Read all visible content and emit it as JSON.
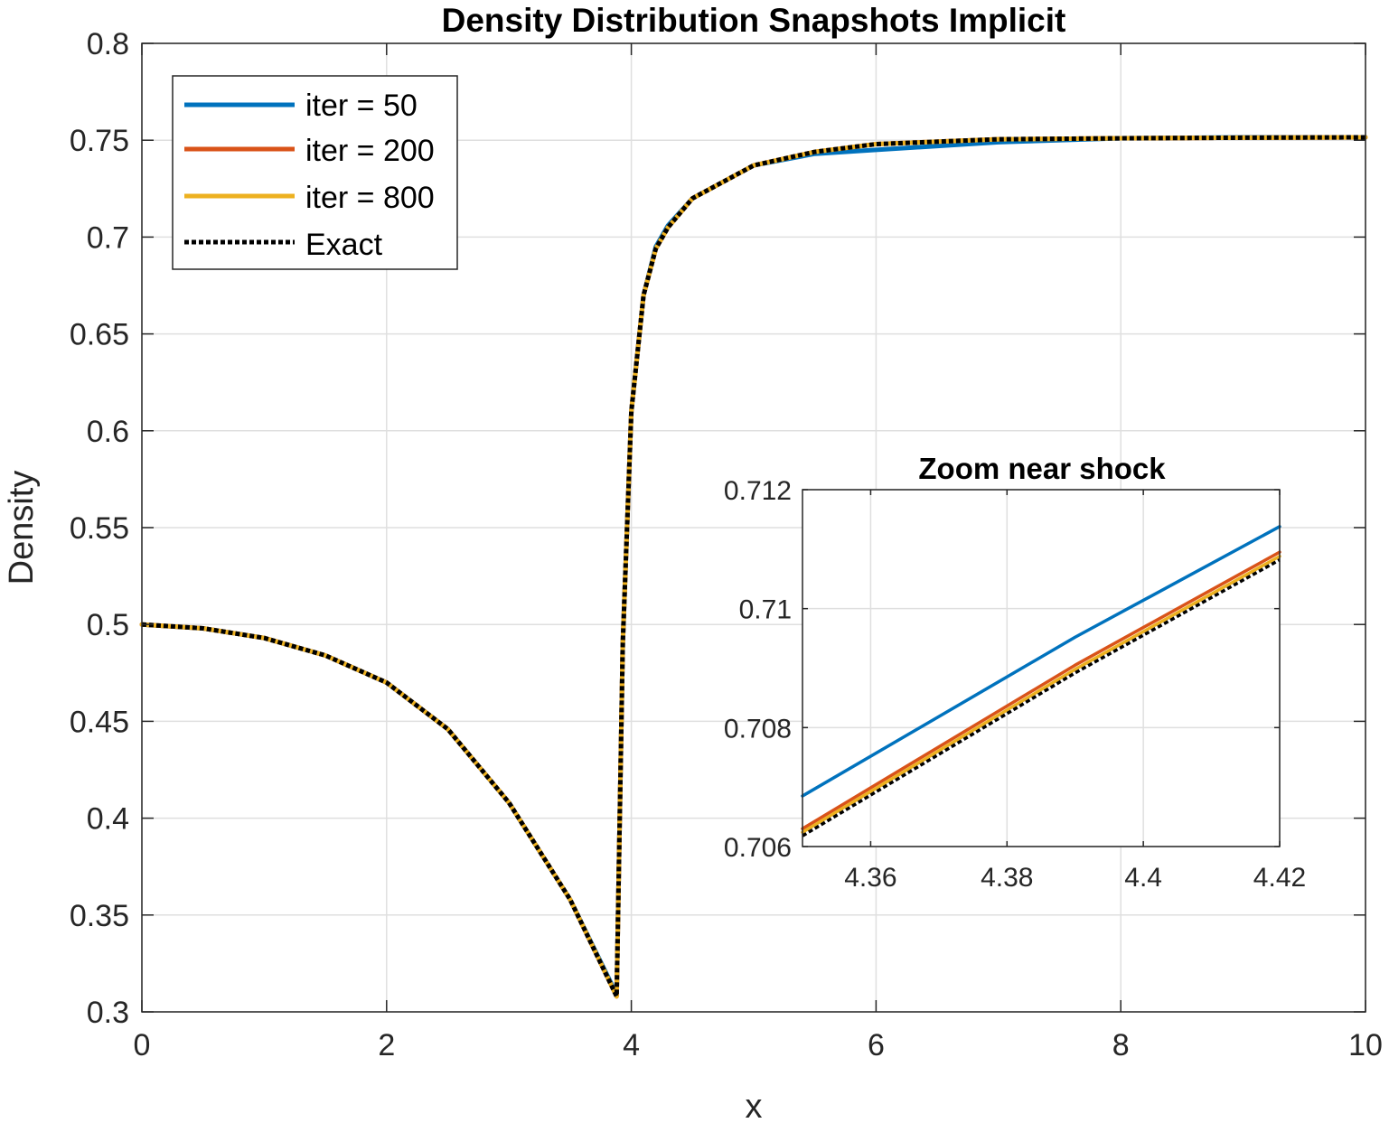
{
  "chart_data": [
    {
      "type": "line",
      "title": "Density Distribution Snapshots Implicit",
      "xlabel": "x",
      "ylabel": "Density",
      "xlim": [
        0,
        10
      ],
      "ylim": [
        0.3,
        0.8
      ],
      "xticks": [
        0,
        2,
        4,
        6,
        8,
        10
      ],
      "xtick_labels": [
        "0",
        "2",
        "4",
        "6",
        "8",
        "10"
      ],
      "yticks": [
        0.3,
        0.35,
        0.4,
        0.45,
        0.5,
        0.55,
        0.6,
        0.65,
        0.7,
        0.75,
        0.8
      ],
      "ytick_labels": [
        "0.3",
        "0.35",
        "0.4",
        "0.45",
        "0.5",
        "0.55",
        "0.6",
        "0.65",
        "0.7",
        "0.75",
        "0.8"
      ],
      "grid": true,
      "legend_position": "top-left",
      "series": [
        {
          "name": "iter = 50",
          "color": "#0072BD",
          "style": "solid",
          "x": [
            0,
            0.5,
            1,
            1.5,
            2,
            2.5,
            3,
            3.5,
            3.88,
            3.93,
            4.0,
            4.1,
            4.2,
            4.3,
            4.5,
            5.0,
            5.5,
            6.0,
            7.0,
            8.0,
            9.0,
            10.0
          ],
          "y": [
            0.5,
            0.498,
            0.493,
            0.484,
            0.47,
            0.446,
            0.408,
            0.358,
            0.309,
            0.49,
            0.61,
            0.67,
            0.695,
            0.706,
            0.72,
            0.737,
            0.743,
            0.745,
            0.749,
            0.751,
            0.7515,
            0.7515
          ]
        },
        {
          "name": "iter = 200",
          "color": "#D95319",
          "style": "solid",
          "x": [
            0,
            0.5,
            1,
            1.5,
            2,
            2.5,
            3,
            3.5,
            3.88,
            3.93,
            4.0,
            4.1,
            4.2,
            4.3,
            4.5,
            5.0,
            5.5,
            6.0,
            7.0,
            8.0,
            9.0,
            10.0
          ],
          "y": [
            0.5,
            0.498,
            0.493,
            0.484,
            0.47,
            0.446,
            0.408,
            0.358,
            0.308,
            0.49,
            0.61,
            0.67,
            0.694,
            0.705,
            0.72,
            0.737,
            0.744,
            0.748,
            0.7505,
            0.751,
            0.7513,
            0.7515
          ]
        },
        {
          "name": "iter = 800",
          "color": "#EDB120",
          "style": "solid",
          "x": [
            0,
            0.5,
            1,
            1.5,
            2,
            2.5,
            3,
            3.5,
            3.88,
            3.93,
            4.0,
            4.1,
            4.2,
            4.3,
            4.5,
            5.0,
            5.5,
            6.0,
            7.0,
            8.0,
            9.0,
            10.0
          ],
          "y": [
            0.5,
            0.498,
            0.493,
            0.484,
            0.47,
            0.446,
            0.408,
            0.358,
            0.308,
            0.49,
            0.61,
            0.67,
            0.694,
            0.705,
            0.72,
            0.737,
            0.744,
            0.748,
            0.7505,
            0.751,
            0.7513,
            0.7515
          ]
        },
        {
          "name": "Exact",
          "color": "#000000",
          "style": "dotted",
          "x": [
            0,
            0.5,
            1,
            1.5,
            2,
            2.5,
            3,
            3.5,
            3.88,
            3.93,
            4.0,
            4.1,
            4.2,
            4.3,
            4.5,
            5.0,
            5.5,
            6.0,
            7.0,
            8.0,
            9.0,
            10.0
          ],
          "y": [
            0.5,
            0.498,
            0.493,
            0.484,
            0.47,
            0.446,
            0.408,
            0.358,
            0.308,
            0.49,
            0.61,
            0.67,
            0.694,
            0.705,
            0.72,
            0.737,
            0.744,
            0.748,
            0.7505,
            0.751,
            0.7513,
            0.7515
          ]
        }
      ]
    },
    {
      "type": "line",
      "title": "Zoom near shock",
      "xlabel": "",
      "ylabel": "",
      "xlim": [
        4.35,
        4.42
      ],
      "ylim": [
        0.706,
        0.712
      ],
      "xticks": [
        4.36,
        4.38,
        4.4,
        4.42
      ],
      "xtick_labels": [
        "4.36",
        "4.38",
        "4.4",
        "4.42"
      ],
      "yticks": [
        0.706,
        0.708,
        0.71,
        0.712
      ],
      "ytick_labels": [
        "0.706",
        "0.708",
        "0.71",
        "0.712"
      ],
      "grid": true,
      "series": [
        {
          "name": "iter = 50",
          "color": "#0072BD",
          "style": "solid",
          "x": [
            4.35,
            4.39,
            4.42
          ],
          "y": [
            0.70685,
            0.70952,
            0.71138
          ]
        },
        {
          "name": "iter = 200",
          "color": "#D95319",
          "style": "solid",
          "x": [
            4.35,
            4.39,
            4.42
          ],
          "y": [
            0.7063,
            0.70905,
            0.71095
          ]
        },
        {
          "name": "iter = 800",
          "color": "#EDB120",
          "style": "solid",
          "x": [
            4.35,
            4.39,
            4.42
          ],
          "y": [
            0.70624,
            0.70898,
            0.71088
          ]
        },
        {
          "name": "Exact",
          "color": "#000000",
          "style": "dotted",
          "x": [
            4.35,
            4.39,
            4.42
          ],
          "y": [
            0.70618,
            0.70892,
            0.71082
          ]
        }
      ]
    }
  ]
}
